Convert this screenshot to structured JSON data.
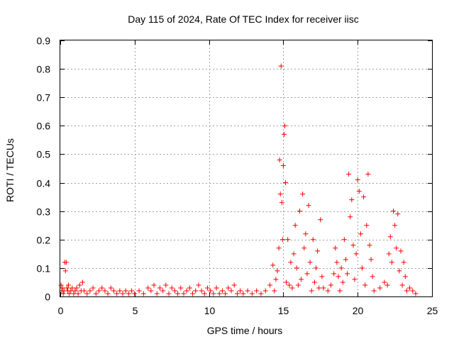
{
  "chart_data": {
    "type": "scatter",
    "title": "Day 115 of 2024, Rate Of TEC Index for receiver iisc",
    "xlabel": "GPS time / hours",
    "ylabel": "ROTI / TECUs",
    "xlim": [
      0,
      25
    ],
    "ylim": [
      0,
      0.9
    ],
    "x_ticks": [
      0,
      5,
      10,
      15,
      20,
      25
    ],
    "x_tick_labels": [
      "0",
      "5",
      "10",
      "15",
      "20",
      "25"
    ],
    "y_ticks": [
      0,
      0.1,
      0.2,
      0.3,
      0.4,
      0.5,
      0.6,
      0.7,
      0.8,
      0.9
    ],
    "y_tick_labels": [
      "0",
      "0.1",
      "0.2",
      "0.3",
      "0.4",
      "0.5",
      "0.6",
      "0.7",
      "0.8",
      "0.9"
    ],
    "grid": true,
    "marker": "+",
    "color": "#ff0000",
    "series": [
      {
        "name": "ROTI",
        "points": [
          [
            0.05,
            0.04
          ],
          [
            0.1,
            0.02
          ],
          [
            0.15,
            0.03
          ],
          [
            0.2,
            0.01
          ],
          [
            0.25,
            0.02
          ],
          [
            0.3,
            0.12
          ],
          [
            0.35,
            0.09
          ],
          [
            0.4,
            0.12
          ],
          [
            0.45,
            0.03
          ],
          [
            0.5,
            0.02
          ],
          [
            0.55,
            0.04
          ],
          [
            0.6,
            0.01
          ],
          [
            0.7,
            0.02
          ],
          [
            0.8,
            0.03
          ],
          [
            0.9,
            0.01
          ],
          [
            1.0,
            0.02
          ],
          [
            1.1,
            0.03
          ],
          [
            1.2,
            0.01
          ],
          [
            1.3,
            0.04
          ],
          [
            1.4,
            0.02
          ],
          [
            1.5,
            0.05
          ],
          [
            1.6,
            0.02
          ],
          [
            1.8,
            0.01
          ],
          [
            2.0,
            0.02
          ],
          [
            2.2,
            0.03
          ],
          [
            2.4,
            0.01
          ],
          [
            2.6,
            0.02
          ],
          [
            2.8,
            0.03
          ],
          [
            3.0,
            0.02
          ],
          [
            3.2,
            0.01
          ],
          [
            3.4,
            0.03
          ],
          [
            3.6,
            0.02
          ],
          [
            3.8,
            0.01
          ],
          [
            4.0,
            0.02
          ],
          [
            4.2,
            0.01
          ],
          [
            4.4,
            0.02
          ],
          [
            4.6,
            0.01
          ],
          [
            4.8,
            0.02
          ],
          [
            5.0,
            0.01
          ],
          [
            5.3,
            0.02
          ],
          [
            5.6,
            0.01
          ],
          [
            5.9,
            0.03
          ],
          [
            6.1,
            0.02
          ],
          [
            6.3,
            0.04
          ],
          [
            6.5,
            0.01
          ],
          [
            6.7,
            0.03
          ],
          [
            6.9,
            0.02
          ],
          [
            7.1,
            0.04
          ],
          [
            7.3,
            0.01
          ],
          [
            7.5,
            0.03
          ],
          [
            7.7,
            0.02
          ],
          [
            7.9,
            0.01
          ],
          [
            8.1,
            0.03
          ],
          [
            8.3,
            0.01
          ],
          [
            8.5,
            0.02
          ],
          [
            8.7,
            0.03
          ],
          [
            8.9,
            0.01
          ],
          [
            9.1,
            0.02
          ],
          [
            9.3,
            0.04
          ],
          [
            9.5,
            0.02
          ],
          [
            9.7,
            0.01
          ],
          [
            9.9,
            0.03
          ],
          [
            10.1,
            0.02
          ],
          [
            10.3,
            0.01
          ],
          [
            10.5,
            0.03
          ],
          [
            10.7,
            0.01
          ],
          [
            10.9,
            0.02
          ],
          [
            11.1,
            0.01
          ],
          [
            11.3,
            0.03
          ],
          [
            11.5,
            0.02
          ],
          [
            11.7,
            0.04
          ],
          [
            11.9,
            0.01
          ],
          [
            12.1,
            0.02
          ],
          [
            12.3,
            0.01
          ],
          [
            12.6,
            0.02
          ],
          [
            12.9,
            0.01
          ],
          [
            13.2,
            0.02
          ],
          [
            13.5,
            0.01
          ],
          [
            13.8,
            0.02
          ],
          [
            14.1,
            0.04
          ],
          [
            14.3,
            0.11
          ],
          [
            14.4,
            0.02
          ],
          [
            14.5,
            0.06
          ],
          [
            14.6,
            0.09
          ],
          [
            14.7,
            0.17
          ],
          [
            14.75,
            0.48
          ],
          [
            14.8,
            0.36
          ],
          [
            14.85,
            0.81
          ],
          [
            14.9,
            0.33
          ],
          [
            14.95,
            0.2
          ],
          [
            15.0,
            0.46
          ],
          [
            15.05,
            0.57
          ],
          [
            15.1,
            0.6
          ],
          [
            15.15,
            0.4
          ],
          [
            15.2,
            0.05
          ],
          [
            15.3,
            0.2
          ],
          [
            15.4,
            0.04
          ],
          [
            15.5,
            0.12
          ],
          [
            15.6,
            0.03
          ],
          [
            15.7,
            0.15
          ],
          [
            15.8,
            0.25
          ],
          [
            15.9,
            0.1
          ],
          [
            16.0,
            0.04
          ],
          [
            16.1,
            0.3
          ],
          [
            16.2,
            0.06
          ],
          [
            16.3,
            0.36
          ],
          [
            16.4,
            0.17
          ],
          [
            16.5,
            0.22
          ],
          [
            16.6,
            0.08
          ],
          [
            16.7,
            0.32
          ],
          [
            16.8,
            0.12
          ],
          [
            16.9,
            0.02
          ],
          [
            17.0,
            0.2
          ],
          [
            17.1,
            0.05
          ],
          [
            17.2,
            0.1
          ],
          [
            17.3,
            0.16
          ],
          [
            17.4,
            0.03
          ],
          [
            17.5,
            0.27
          ],
          [
            17.6,
            0.07
          ],
          [
            17.7,
            0.03
          ],
          [
            18.0,
            0.02
          ],
          [
            18.2,
            0.04
          ],
          [
            18.4,
            0.08
          ],
          [
            18.5,
            0.17
          ],
          [
            18.6,
            0.12
          ],
          [
            18.7,
            0.07
          ],
          [
            18.8,
            0.02
          ],
          [
            18.9,
            0.1
          ],
          [
            19.0,
            0.05
          ],
          [
            19.1,
            0.2
          ],
          [
            19.2,
            0.13
          ],
          [
            19.3,
            0.08
          ],
          [
            19.4,
            0.43
          ],
          [
            19.5,
            0.28
          ],
          [
            19.6,
            0.34
          ],
          [
            19.7,
            0.18
          ],
          [
            19.8,
            0.06
          ],
          [
            19.9,
            0.15
          ],
          [
            20.0,
            0.41
          ],
          [
            20.1,
            0.37
          ],
          [
            20.2,
            0.22
          ],
          [
            20.3,
            0.1
          ],
          [
            20.4,
            0.35
          ],
          [
            20.5,
            0.04
          ],
          [
            20.6,
            0.25
          ],
          [
            20.7,
            0.43
          ],
          [
            20.8,
            0.18
          ],
          [
            20.9,
            0.13
          ],
          [
            21.0,
            0.07
          ],
          [
            21.1,
            0.02
          ],
          [
            21.5,
            0.03
          ],
          [
            21.8,
            0.05
          ],
          [
            22.0,
            0.04
          ],
          [
            22.1,
            0.15
          ],
          [
            22.2,
            0.21
          ],
          [
            22.3,
            0.12
          ],
          [
            22.4,
            0.3
          ],
          [
            22.5,
            0.25
          ],
          [
            22.6,
            0.17
          ],
          [
            22.7,
            0.29
          ],
          [
            22.8,
            0.09
          ],
          [
            22.9,
            0.16
          ],
          [
            23.0,
            0.04
          ],
          [
            23.1,
            0.12
          ],
          [
            23.2,
            0.07
          ],
          [
            23.3,
            0.02
          ],
          [
            23.5,
            0.03
          ],
          [
            23.7,
            0.02
          ],
          [
            23.9,
            0.01
          ]
        ]
      }
    ]
  }
}
